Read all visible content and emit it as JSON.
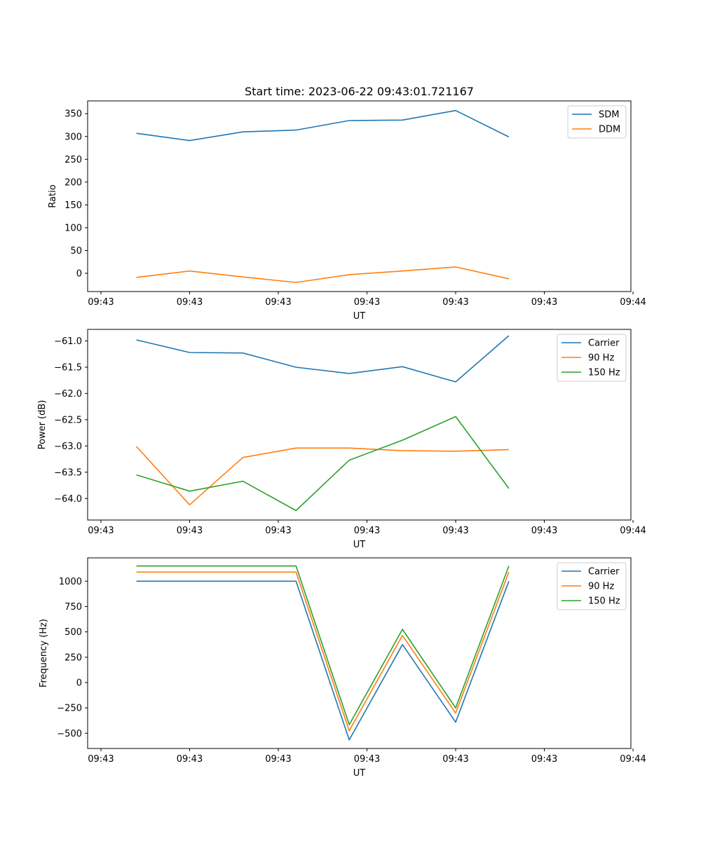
{
  "figure": {
    "title": "Start time: 2023-06-22 09:43:01.721167"
  },
  "chart_data": [
    {
      "type": "line",
      "title": "Start time: 2023-06-22 09:43:01.721167",
      "xlabel": "UT",
      "ylabel": "Ratio",
      "x": [
        "09:43:02.2",
        "09:43:02.5",
        "09:43:02.8",
        "09:43:03.1",
        "09:43:03.4",
        "09:43:03.7",
        "09:43:04.0",
        "09:43:04.3"
      ],
      "x_tick_labels": [
        "09:43",
        "09:43",
        "09:43",
        "09:43",
        "09:43",
        "09:43",
        "09:44"
      ],
      "y_ticks": [
        0,
        50,
        100,
        150,
        200,
        250,
        300,
        350
      ],
      "ylim": [
        -40,
        378
      ],
      "series": [
        {
          "name": "SDM",
          "color": "#1f77b4",
          "values": [
            307,
            291,
            310,
            314,
            335,
            336,
            357,
            299
          ]
        },
        {
          "name": "DDM",
          "color": "#ff7f0e",
          "values": [
            -9,
            5,
            -8,
            -20,
            -3,
            5,
            14,
            -12
          ]
        }
      ],
      "legend": "top-right",
      "grid": false
    },
    {
      "type": "line",
      "xlabel": "UT",
      "ylabel": "Power (dB)",
      "x": [
        "09:43:02.2",
        "09:43:02.5",
        "09:43:02.8",
        "09:43:03.1",
        "09:43:03.4",
        "09:43:03.7",
        "09:43:04.0",
        "09:43:04.3"
      ],
      "x_tick_labels": [
        "09:43",
        "09:43",
        "09:43",
        "09:43",
        "09:43",
        "09:43",
        "09:44"
      ],
      "y_ticks": [
        -64.0,
        -63.5,
        -63.0,
        -62.5,
        -62.0,
        -61.5,
        -61.0
      ],
      "y_tick_labels": [
        "−64.0",
        "−63.5",
        "−63.0",
        "−62.5",
        "−62.0",
        "−61.5",
        "−61.0"
      ],
      "ylim": [
        -64.41,
        -60.78
      ],
      "series": [
        {
          "name": "Carrier",
          "color": "#1f77b4",
          "values": [
            -60.98,
            -61.22,
            -61.23,
            -61.5,
            -61.62,
            -61.49,
            -61.78,
            -60.9
          ]
        },
        {
          "name": "90 Hz",
          "color": "#ff7f0e",
          "values": [
            -63.01,
            -64.12,
            -63.22,
            -63.04,
            -63.04,
            -63.09,
            -63.1,
            -63.07
          ]
        },
        {
          "name": "150 Hz",
          "color": "#2ca02c",
          "values": [
            -63.55,
            -63.86,
            -63.67,
            -64.23,
            -63.27,
            -62.89,
            -62.44,
            -63.81
          ]
        }
      ],
      "legend": "top-right",
      "grid": false
    },
    {
      "type": "line",
      "xlabel": "UT",
      "ylabel": "Frequency (Hz)",
      "x": [
        "09:43:02.2",
        "09:43:02.5",
        "09:43:02.8",
        "09:43:03.1",
        "09:43:03.4",
        "09:43:03.7",
        "09:43:04.0",
        "09:43:04.3"
      ],
      "x_tick_labels": [
        "09:43",
        "09:43",
        "09:43",
        "09:43",
        "09:43",
        "09:43",
        "09:44"
      ],
      "y_ticks": [
        -500,
        -250,
        0,
        250,
        500,
        750,
        1000
      ],
      "y_tick_labels": [
        "−500",
        "−250",
        "0",
        "250",
        "500",
        "750",
        "1000"
      ],
      "ylim": [
        -650,
        1230
      ],
      "series": [
        {
          "name": "Carrier",
          "color": "#1f77b4",
          "values": [
            1000,
            1000,
            1000,
            1000,
            -565,
            375,
            -390,
            1000
          ]
        },
        {
          "name": "90 Hz",
          "color": "#ff7f0e",
          "values": [
            1090,
            1090,
            1090,
            1090,
            -475,
            465,
            -300,
            1090
          ]
        },
        {
          "name": "150 Hz",
          "color": "#2ca02c",
          "values": [
            1150,
            1150,
            1150,
            1150,
            -415,
            525,
            -250,
            1150
          ]
        }
      ],
      "legend": "top-right",
      "grid": false
    }
  ]
}
